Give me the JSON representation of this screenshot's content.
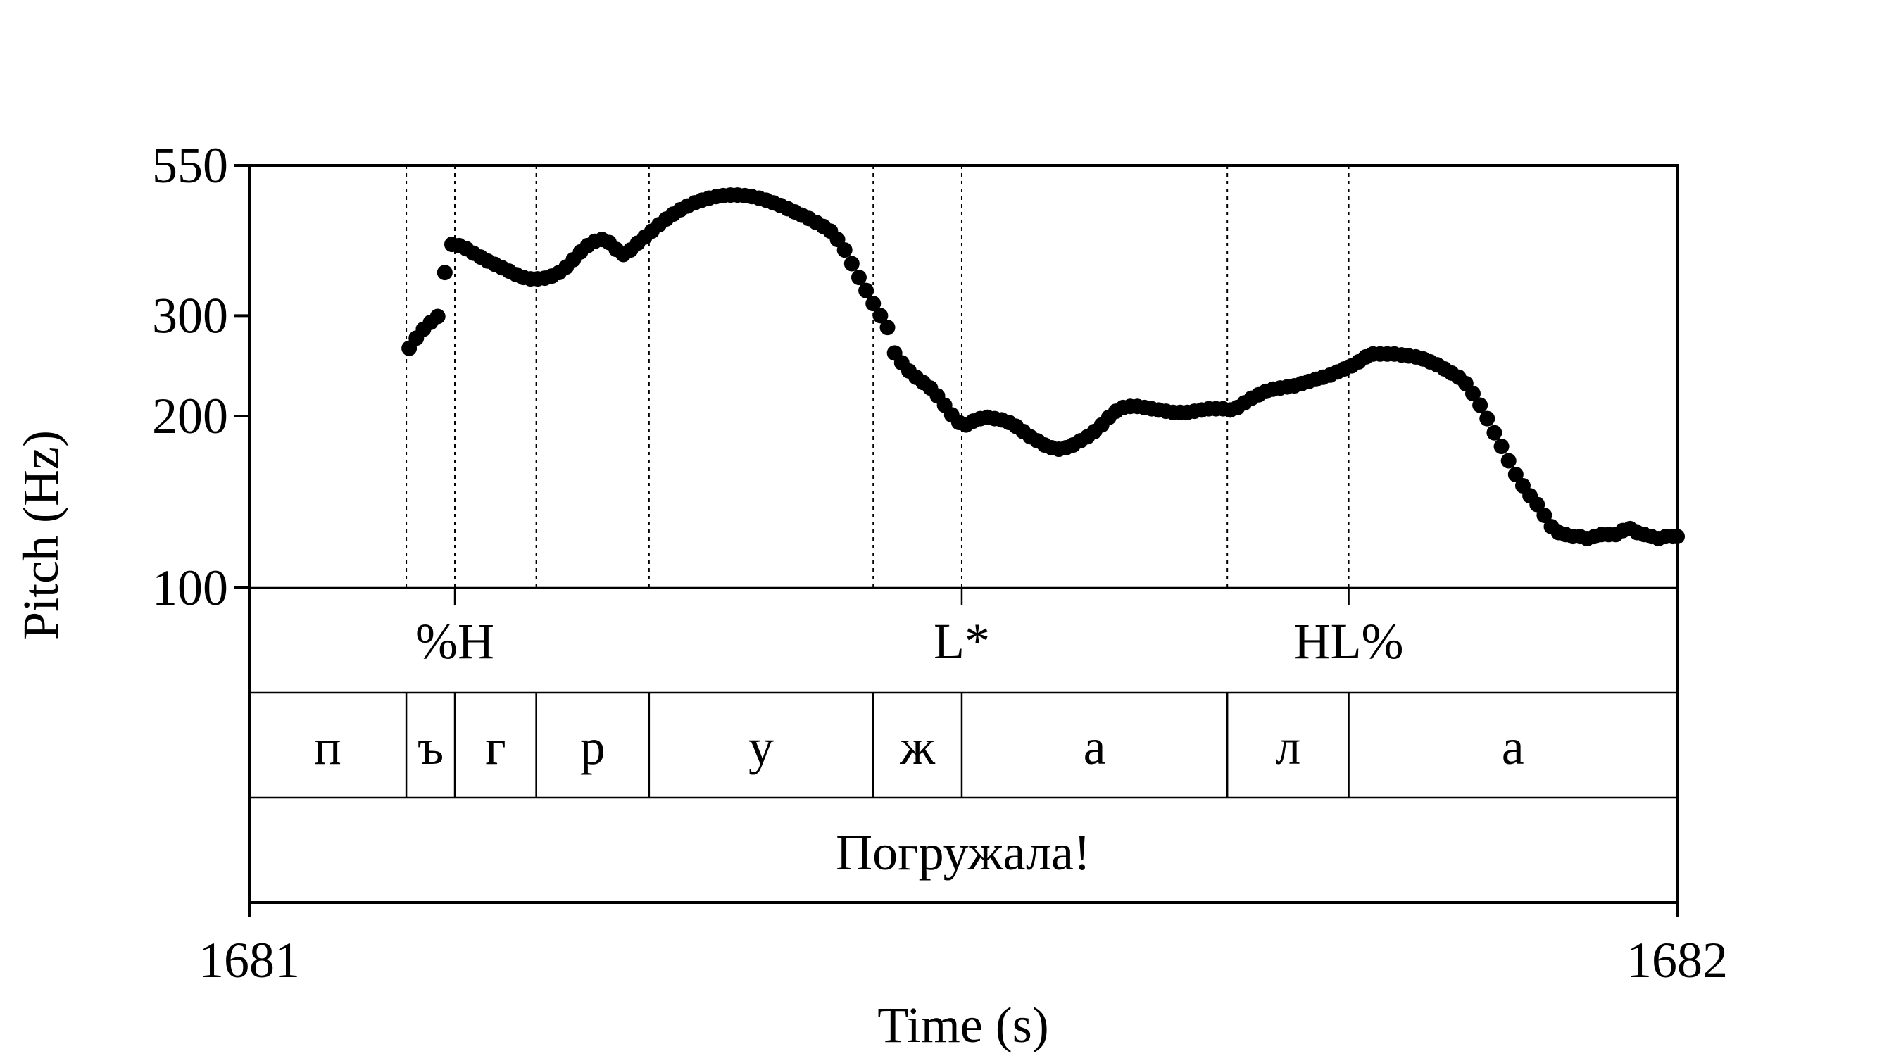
{
  "chart_data": {
    "type": "scatter",
    "xlabel": "Time (s)",
    "ylabel": "Pitch (Hz)",
    "xlim": [
      1681,
      1682
    ],
    "ylim": [
      100,
      550
    ],
    "y_scale": "log",
    "x_ticks": [
      "1681",
      "1682"
    ],
    "y_ticks": [
      100,
      200,
      300,
      550
    ],
    "grid": false,
    "series": [
      {
        "color": "#000000",
        "points": [
          [
            1681.112,
            263
          ],
          [
            1681.117,
            274
          ],
          [
            1681.122,
            284
          ],
          [
            1681.127,
            292
          ],
          [
            1681.132,
            299
          ],
          [
            1681.137,
            357
          ],
          [
            1681.142,
            400
          ],
          [
            1681.147,
            398
          ],
          [
            1681.152,
            393
          ],
          [
            1681.157,
            386
          ],
          [
            1681.162,
            380
          ],
          [
            1681.167,
            374
          ],
          [
            1681.172,
            369
          ],
          [
            1681.177,
            364
          ],
          [
            1681.182,
            359
          ],
          [
            1681.187,
            354
          ],
          [
            1681.192,
            350
          ],
          [
            1681.197,
            348
          ],
          [
            1681.202,
            348
          ],
          [
            1681.207,
            349
          ],
          [
            1681.212,
            352
          ],
          [
            1681.217,
            357
          ],
          [
            1681.222,
            365
          ],
          [
            1681.227,
            376
          ],
          [
            1681.232,
            388
          ],
          [
            1681.237,
            398
          ],
          [
            1681.242,
            405
          ],
          [
            1681.247,
            408
          ],
          [
            1681.252,
            403
          ],
          [
            1681.257,
            392
          ],
          [
            1681.262,
            384
          ],
          [
            1681.267,
            391
          ],
          [
            1681.272,
            402
          ],
          [
            1681.277,
            412
          ],
          [
            1681.282,
            422
          ],
          [
            1681.287,
            433
          ],
          [
            1681.292,
            443
          ],
          [
            1681.297,
            452
          ],
          [
            1681.302,
            460
          ],
          [
            1681.307,
            467
          ],
          [
            1681.312,
            473
          ],
          [
            1681.317,
            478
          ],
          [
            1681.322,
            482
          ],
          [
            1681.327,
            485
          ],
          [
            1681.332,
            487
          ],
          [
            1681.337,
            488
          ],
          [
            1681.342,
            488
          ],
          [
            1681.347,
            487
          ],
          [
            1681.352,
            485
          ],
          [
            1681.357,
            482
          ],
          [
            1681.362,
            478
          ],
          [
            1681.367,
            473
          ],
          [
            1681.372,
            468
          ],
          [
            1681.377,
            462
          ],
          [
            1681.382,
            456
          ],
          [
            1681.387,
            450
          ],
          [
            1681.392,
            444
          ],
          [
            1681.397,
            437
          ],
          [
            1681.402,
            430
          ],
          [
            1681.407,
            422
          ],
          [
            1681.412,
            408
          ],
          [
            1681.417,
            391
          ],
          [
            1681.422,
            370
          ],
          [
            1681.427,
            350
          ],
          [
            1681.432,
            332
          ],
          [
            1681.437,
            315
          ],
          [
            1681.442,
            300
          ],
          [
            1681.447,
            286
          ],
          [
            1681.452,
            258
          ],
          [
            1681.457,
            248
          ],
          [
            1681.462,
            240
          ],
          [
            1681.467,
            234
          ],
          [
            1681.472,
            229
          ],
          [
            1681.477,
            224
          ],
          [
            1681.482,
            217
          ],
          [
            1681.487,
            209
          ],
          [
            1681.492,
            201
          ],
          [
            1681.497,
            195
          ],
          [
            1681.502,
            193
          ],
          [
            1681.507,
            196
          ],
          [
            1681.512,
            198
          ],
          [
            1681.517,
            199
          ],
          [
            1681.522,
            198
          ],
          [
            1681.527,
            197
          ],
          [
            1681.532,
            195
          ],
          [
            1681.537,
            192
          ],
          [
            1681.542,
            188
          ],
          [
            1681.547,
            184
          ],
          [
            1681.552,
            181
          ],
          [
            1681.557,
            178
          ],
          [
            1681.562,
            176
          ],
          [
            1681.567,
            175
          ],
          [
            1681.572,
            176
          ],
          [
            1681.577,
            178
          ],
          [
            1681.582,
            181
          ],
          [
            1681.587,
            184
          ],
          [
            1681.592,
            188
          ],
          [
            1681.597,
            193
          ],
          [
            1681.602,
            199
          ],
          [
            1681.607,
            204
          ],
          [
            1681.612,
            207
          ],
          [
            1681.617,
            208
          ],
          [
            1681.622,
            208
          ],
          [
            1681.627,
            207
          ],
          [
            1681.632,
            206
          ],
          [
            1681.637,
            205
          ],
          [
            1681.642,
            204
          ],
          [
            1681.647,
            203
          ],
          [
            1681.652,
            203
          ],
          [
            1681.657,
            203
          ],
          [
            1681.662,
            204
          ],
          [
            1681.667,
            205
          ],
          [
            1681.672,
            206
          ],
          [
            1681.677,
            206
          ],
          [
            1681.682,
            206
          ],
          [
            1681.687,
            205
          ],
          [
            1681.692,
            207
          ],
          [
            1681.697,
            211
          ],
          [
            1681.702,
            215
          ],
          [
            1681.707,
            218
          ],
          [
            1681.712,
            221
          ],
          [
            1681.717,
            223
          ],
          [
            1681.722,
            224
          ],
          [
            1681.727,
            225
          ],
          [
            1681.732,
            226
          ],
          [
            1681.737,
            228
          ],
          [
            1681.742,
            230
          ],
          [
            1681.747,
            232
          ],
          [
            1681.752,
            234
          ],
          [
            1681.757,
            236
          ],
          [
            1681.762,
            239
          ],
          [
            1681.767,
            242
          ],
          [
            1681.772,
            245
          ],
          [
            1681.777,
            249
          ],
          [
            1681.782,
            254
          ],
          [
            1681.787,
            257
          ],
          [
            1681.792,
            257
          ],
          [
            1681.797,
            257
          ],
          [
            1681.802,
            257
          ],
          [
            1681.807,
            256
          ],
          [
            1681.812,
            255
          ],
          [
            1681.817,
            254
          ],
          [
            1681.822,
            252
          ],
          [
            1681.827,
            249
          ],
          [
            1681.832,
            246
          ],
          [
            1681.837,
            242
          ],
          [
            1681.842,
            238
          ],
          [
            1681.847,
            234
          ],
          [
            1681.852,
            228
          ],
          [
            1681.857,
            219
          ],
          [
            1681.862,
            209
          ],
          [
            1681.867,
            198
          ],
          [
            1681.872,
            187
          ],
          [
            1681.877,
            177
          ],
          [
            1681.882,
            167
          ],
          [
            1681.887,
            158
          ],
          [
            1681.892,
            151
          ],
          [
            1681.897,
            145
          ],
          [
            1681.902,
            140
          ],
          [
            1681.907,
            134
          ],
          [
            1681.912,
            128
          ],
          [
            1681.917,
            125
          ],
          [
            1681.922,
            124
          ],
          [
            1681.927,
            123
          ],
          [
            1681.932,
            123
          ],
          [
            1681.937,
            122
          ],
          [
            1681.942,
            123
          ],
          [
            1681.947,
            124
          ],
          [
            1681.952,
            124
          ],
          [
            1681.957,
            124
          ],
          [
            1681.962,
            126
          ],
          [
            1681.967,
            127
          ],
          [
            1681.972,
            125
          ],
          [
            1681.977,
            124
          ],
          [
            1681.982,
            123
          ],
          [
            1681.987,
            122
          ],
          [
            1681.992,
            123
          ],
          [
            1681.997,
            123
          ],
          [
            1682.0,
            123
          ]
        ]
      }
    ],
    "boundaries": [
      1681.11,
      1681.144,
      1681.201,
      1681.28,
      1681.437,
      1681.499,
      1681.685,
      1681.77
    ],
    "tiers": [
      {
        "name": "tones",
        "labels": [
          {
            "text": "%H",
            "time": 1681.144
          },
          {
            "text": "L*",
            "time": 1681.499
          },
          {
            "text": "HL%",
            "time": 1681.77
          }
        ]
      },
      {
        "name": "segments",
        "intervals": [
          {
            "text": "п",
            "start": 1681.0,
            "end": 1681.11
          },
          {
            "text": "ъ",
            "start": 1681.11,
            "end": 1681.144
          },
          {
            "text": "г",
            "start": 1681.144,
            "end": 1681.201
          },
          {
            "text": "р",
            "start": 1681.201,
            "end": 1681.28
          },
          {
            "text": "у",
            "start": 1681.28,
            "end": 1681.437
          },
          {
            "text": "ж",
            "start": 1681.437,
            "end": 1681.499
          },
          {
            "text": "а",
            "start": 1681.499,
            "end": 1681.685
          },
          {
            "text": "л",
            "start": 1681.685,
            "end": 1681.77
          },
          {
            "text": "а",
            "start": 1681.77,
            "end": 1682.0
          }
        ]
      },
      {
        "name": "word",
        "intervals": [
          {
            "text": "Погружала!",
            "start": 1681.0,
            "end": 1682.0
          }
        ]
      }
    ]
  }
}
